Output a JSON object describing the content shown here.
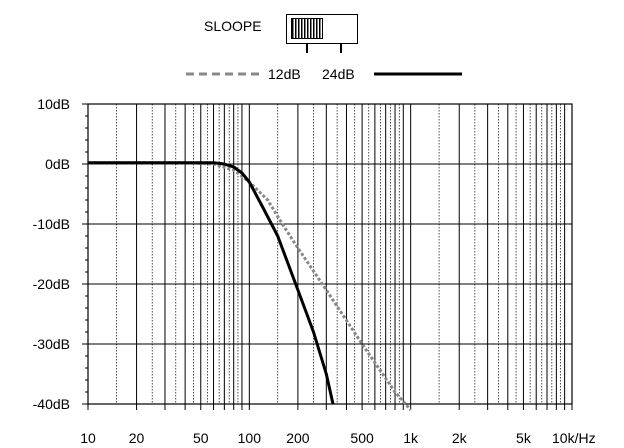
{
  "slope_switch": {
    "label": "SLOOPE",
    "position": "12dB"
  },
  "chart_data": {
    "type": "line",
    "x_scale": "log",
    "xlim": [
      10,
      10000
    ],
    "ylim": [
      -40,
      10
    ],
    "grid": true,
    "legend_position": "top-center",
    "x_tick_labels": [
      {
        "value": 10,
        "label": "10"
      },
      {
        "value": 20,
        "label": "20"
      },
      {
        "value": 50,
        "label": "50"
      },
      {
        "value": 100,
        "label": "100"
      },
      {
        "value": 200,
        "label": "200"
      },
      {
        "value": 500,
        "label": "500"
      },
      {
        "value": 1000,
        "label": "1k"
      },
      {
        "value": 2000,
        "label": "2k"
      },
      {
        "value": 5000,
        "label": "5k"
      },
      {
        "value": 10000,
        "label": "10k/Hz"
      }
    ],
    "y_tick_labels": [
      {
        "value": 10,
        "label": "10dB"
      },
      {
        "value": 0,
        "label": "0dB"
      },
      {
        "value": -10,
        "label": "-10dB"
      },
      {
        "value": -20,
        "label": "-20dB"
      },
      {
        "value": -30,
        "label": "-30dB"
      },
      {
        "value": -40,
        "label": "-40dB"
      }
    ],
    "series": [
      {
        "name": "12dB",
        "style": "dashed",
        "color": "#888888",
        "x": [
          10,
          40,
          60,
          80,
          100,
          130,
          160,
          200,
          300,
          500,
          800,
          1000
        ],
        "y": [
          0.2,
          0.2,
          0,
          -1,
          -3,
          -6,
          -10,
          -14,
          -21,
          -30,
          -38,
          -41
        ]
      },
      {
        "name": "24dB",
        "style": "solid",
        "color": "#000000",
        "x": [
          10,
          40,
          60,
          70,
          80,
          90,
          100,
          120,
          150,
          200,
          250,
          300,
          330
        ],
        "y": [
          0.2,
          0.2,
          0.2,
          0,
          -0.5,
          -1.5,
          -3,
          -7,
          -12,
          -21,
          -28,
          -35,
          -40
        ]
      }
    ]
  }
}
